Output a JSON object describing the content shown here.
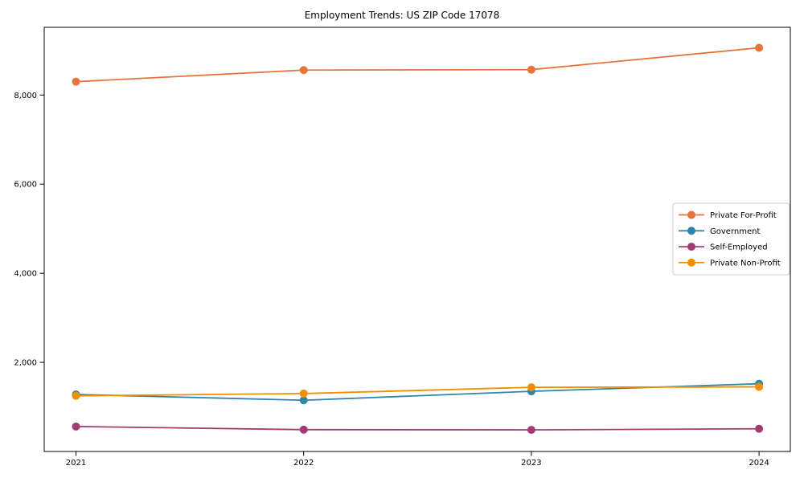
{
  "chart_data": {
    "type": "line",
    "title": "Employment Trends: US ZIP Code 17078",
    "xlabel": "",
    "ylabel": "",
    "x": [
      "2021",
      "2022",
      "2023",
      "2024"
    ],
    "yticks": [
      2000,
      4000,
      6000,
      8000
    ],
    "ylim": [
      0,
      9520
    ],
    "grid": false,
    "legend_position": "center right",
    "axis_color": "#000000",
    "legend_border_color": "#cccccc",
    "series": [
      {
        "name": "Private For-Profit",
        "color": "#E8743B",
        "values": [
          8300,
          8560,
          8570,
          9060
        ]
      },
      {
        "name": "Government",
        "color": "#2E86AB",
        "values": [
          1280,
          1150,
          1350,
          1520
        ]
      },
      {
        "name": "Self-Employed",
        "color": "#A23B72",
        "values": [
          560,
          490,
          485,
          510
        ]
      },
      {
        "name": "Private Non-Profit",
        "color": "#F18F01",
        "values": [
          1250,
          1300,
          1440,
          1450
        ]
      }
    ]
  }
}
